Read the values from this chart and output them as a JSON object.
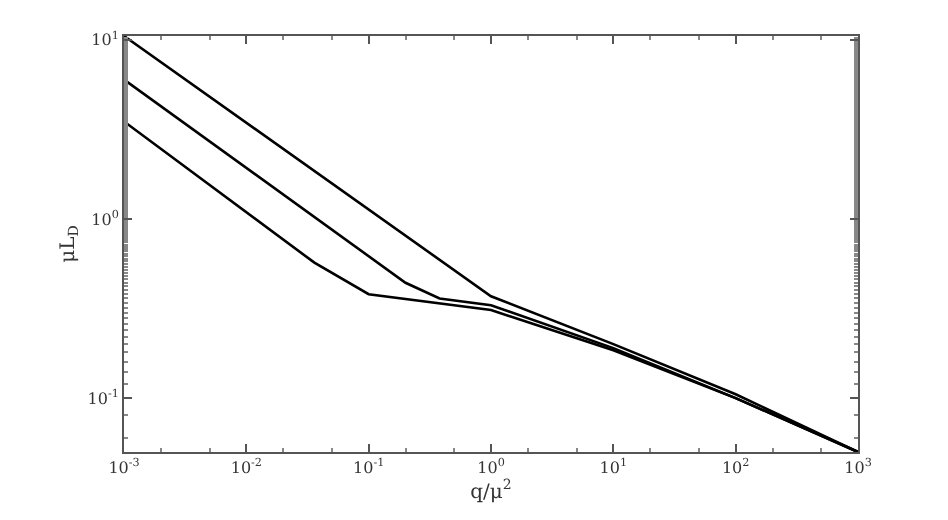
{
  "chart_data": {
    "type": "line",
    "xlabel": "q/μ$^{2}$",
    "ylabel": "μL$_{D}$",
    "log": "xy",
    "marker": "none",
    "line_style": "solid",
    "xlim": [
      0.001,
      1000
    ],
    "ylim": [
      0.05,
      10.5
    ],
    "xticks": [
      {
        "value": 0.001,
        "label": "10$^{-3}$"
      },
      {
        "value": 0.01,
        "label": "10$^{-2}$"
      },
      {
        "value": 0.1,
        "label": "10$^{-1}$"
      },
      {
        "value": 1,
        "label": "10$^{0}$"
      },
      {
        "value": 10,
        "label": "10$^{1}$"
      },
      {
        "value": 100,
        "label": "10$^{2}$"
      },
      {
        "value": 1000,
        "label": "10$^{3}$"
      }
    ],
    "yticks": [
      {
        "value": 0.1,
        "label": "10$^{-1}$"
      },
      {
        "value": 1,
        "label": "10$^{0}$"
      },
      {
        "value": 10,
        "label": "10$^{1}$"
      }
    ],
    "series": [
      {
        "color": "#000000",
        "x": [
          0.001,
          1,
          10,
          100,
          1000
        ],
        "values": [
          10.5,
          0.37,
          0.2,
          0.105,
          0.05
        ]
      },
      {
        "color": "#000000",
        "x": [
          0.001,
          0.2,
          0.38,
          1,
          10,
          100,
          1000
        ],
        "values": [
          6.0,
          0.44,
          0.36,
          0.33,
          0.19,
          0.1,
          0.05
        ]
      },
      {
        "color": "#000000",
        "x": [
          0.001,
          0.036,
          0.1,
          1,
          10,
          100,
          1000
        ],
        "values": [
          3.5,
          0.57,
          0.38,
          0.31,
          0.185,
          0.1,
          0.05
        ]
      }
    ]
  }
}
